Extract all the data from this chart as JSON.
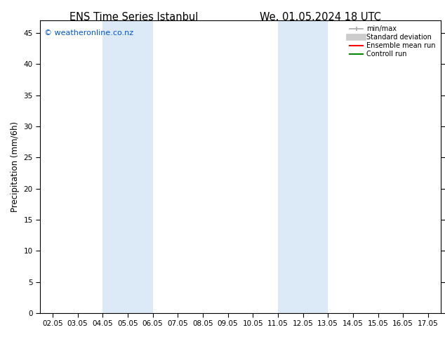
{
  "title_left": "ENS Time Series Istanbul",
  "title_right": "We. 01.05.2024 18 UTC",
  "ylabel": "Precipitation (mm/6h)",
  "xlabel": "",
  "xlim_labels": [
    "02.05",
    "03.05",
    "04.05",
    "05.05",
    "06.05",
    "07.05",
    "08.05",
    "09.05",
    "10.05",
    "11.05",
    "12.05",
    "13.05",
    "14.05",
    "15.05",
    "16.05",
    "17.05"
  ],
  "ylim": [
    0,
    47
  ],
  "yticks": [
    0,
    5,
    10,
    15,
    20,
    25,
    30,
    35,
    40,
    45
  ],
  "shaded_regions": [
    {
      "xstart_label": "04.05",
      "xend_label": "06.05",
      "color": "#dce9f7"
    },
    {
      "xstart_label": "11.05",
      "xend_label": "13.05",
      "color": "#dce9f7"
    }
  ],
  "background_color": "#ffffff",
  "plot_bg_color": "#ffffff",
  "watermark_text": "© weatheronline.co.nz",
  "watermark_color": "#0055cc",
  "legend_entries": [
    {
      "label": "min/max",
      "color": "#aaaaaa",
      "lw": 1.2
    },
    {
      "label": "Standard deviation",
      "color": "#cccccc",
      "lw": 6
    },
    {
      "label": "Ensemble mean run",
      "color": "#ff0000",
      "lw": 1.5
    },
    {
      "label": "Controll run",
      "color": "#008800",
      "lw": 1.5
    }
  ],
  "title_fontsize": 10.5,
  "tick_labelsize": 7.5,
  "ylabel_fontsize": 8.5,
  "spine_color": "#000000",
  "font_family": "DejaVu Sans"
}
